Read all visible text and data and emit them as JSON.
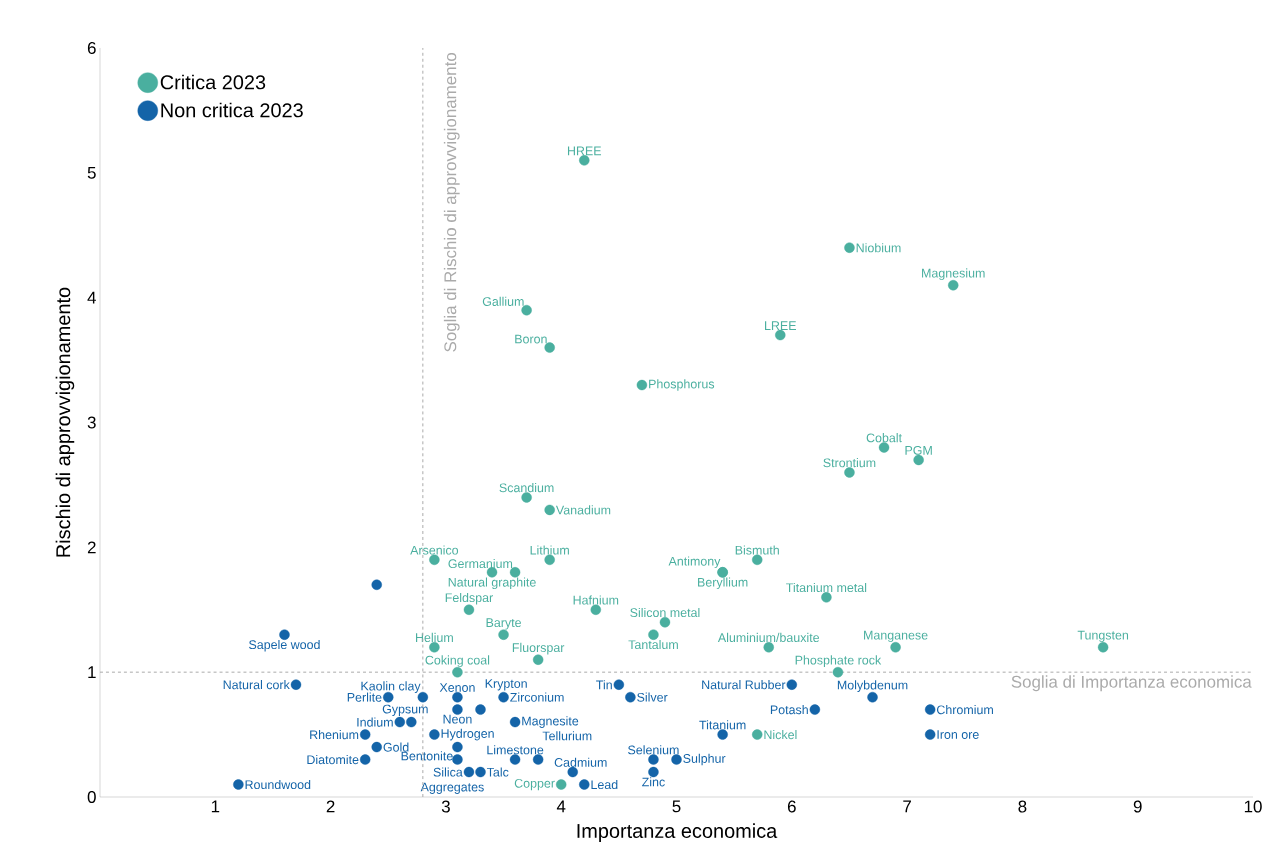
{
  "chart_data": {
    "type": "scatter",
    "xlabel": "Importanza economica",
    "ylabel": "Rischio di approvvigionamento",
    "xlim": [
      0,
      10
    ],
    "xticks": [
      1,
      2,
      3,
      4,
      5,
      6,
      7,
      8,
      9,
      10
    ],
    "ylim": [
      0,
      6
    ],
    "yticks": [
      0,
      1,
      2,
      3,
      4,
      5,
      6
    ],
    "legend": "top left",
    "marker": "circle",
    "ref_lines": [
      {
        "axis": "x",
        "value": 2.8,
        "label": "Soglia di Rischio di approvvigionamento",
        "color": "#aaaaaa",
        "line_style": "dashed"
      },
      {
        "axis": "y",
        "value": 1.0,
        "label": "Soglia di Importanza economica",
        "color": "#aaaaaa",
        "line_style": "dashed"
      }
    ],
    "series": [
      {
        "name": "Critica 2023",
        "color": "#4aaf9f",
        "x": [
          4.2,
          6.5,
          7.4,
          3.7,
          3.9,
          5.9,
          4.7,
          6.8,
          7.1,
          6.5,
          3.7,
          3.9,
          2.9,
          3.9,
          3.6,
          3.4,
          5.7,
          5.4,
          5.4,
          6.3,
          3.2,
          4.3,
          4.9,
          4.8,
          3.5,
          2.9,
          3.8,
          3.1,
          5.8,
          6.9,
          8.7,
          6.4,
          5.7,
          4.0
        ],
        "values": [
          5.1,
          4.4,
          4.1,
          3.9,
          3.6,
          3.7,
          3.3,
          2.8,
          2.7,
          2.6,
          2.4,
          2.3,
          1.9,
          1.9,
          1.8,
          1.8,
          1.9,
          1.8,
          1.8,
          1.6,
          1.5,
          1.5,
          1.4,
          1.3,
          1.3,
          1.2,
          1.1,
          1.0,
          1.2,
          1.2,
          1.2,
          1.0,
          0.5,
          0.1
        ],
        "value_labels": [
          "HREE",
          "Niobium",
          "Magnesium",
          "Gallium",
          "Boron",
          "LREE",
          "Phosphorus",
          "Cobalt",
          "PGM",
          "Strontium",
          "Scandium",
          "Vanadium",
          "Arsenico",
          "Lithium",
          "Germanium",
          "Natural graphite",
          "Bismuth",
          "Antimony",
          "Beryllium",
          "Titanium metal",
          "Feldspar",
          "Hafnium",
          "Silicon metal",
          "Tantalum",
          "Baryte",
          "Helium",
          "Fluorspar",
          "Coking coal",
          "Aluminium/bauxite",
          "Manganese",
          "Tungsten",
          "Phosphate rock",
          "Nickel",
          "Copper"
        ]
      },
      {
        "name": "Non critica 2023",
        "color": "#1464a8",
        "x": [
          2.4,
          1.6,
          1.7,
          2.8,
          2.5,
          3.1,
          3.5,
          3.1,
          2.7,
          2.6,
          3.3,
          3.6,
          2.3,
          2.9,
          2.4,
          3.1,
          3.2,
          3.1,
          3.3,
          2.3,
          3.6,
          3.8,
          4.1,
          4.2,
          4.8,
          4.8,
          5.0,
          4.5,
          4.6,
          6.0,
          6.2,
          6.7,
          7.2,
          7.2,
          5.4,
          1.2
        ],
        "values": [
          1.7,
          1.3,
          0.9,
          0.8,
          0.8,
          0.8,
          0.8,
          0.7,
          0.6,
          0.6,
          0.7,
          0.6,
          0.5,
          0.5,
          0.4,
          0.4,
          0.2,
          0.3,
          0.2,
          0.3,
          0.3,
          0.3,
          0.2,
          0.1,
          0.2,
          0.3,
          0.3,
          0.9,
          0.8,
          0.9,
          0.7,
          0.8,
          0.7,
          0.5,
          0.5,
          0.1
        ],
        "value_labels": [
          null,
          "Sapele wood",
          "Natural cork",
          "Kaolin clay",
          "Perlite",
          "Xenon",
          "Zirconium",
          "Neon",
          "Gypsum",
          "Indium",
          "Krypton",
          "Magnesite",
          "Rhenium",
          "Hydrogen",
          "Gold",
          "Bentonite",
          "Silica",
          "Aggregates",
          "Talc",
          "Diatomite",
          "Limestone",
          "Tellurium",
          "Cadmium",
          "Lead",
          "Zinc",
          "Selenium",
          "Sulphur",
          "Tin",
          "Silver",
          "Natural Rubber",
          "Potash",
          "Molybdenum",
          "Chromium",
          "Iron ore",
          "Titanium",
          "Roundwood"
        ]
      }
    ]
  }
}
